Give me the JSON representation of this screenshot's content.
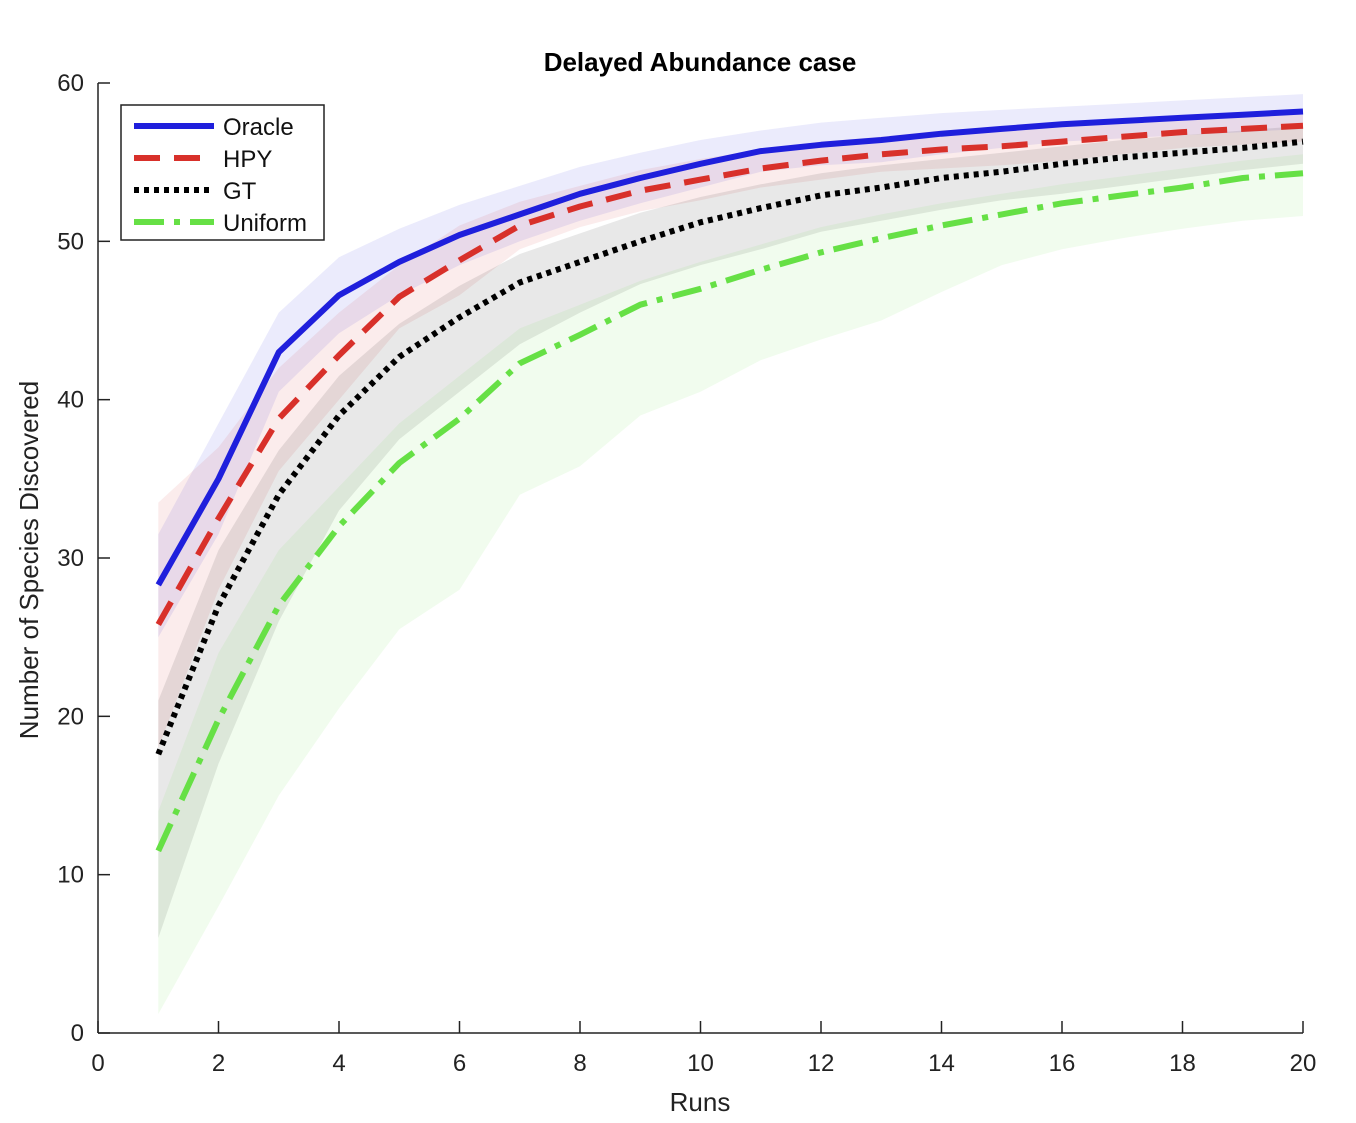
{
  "chart_data": {
    "type": "line",
    "title": "Delayed Abundance case",
    "xlabel": "Runs",
    "ylabel": "Number of Species Discovered",
    "xlim": [
      0,
      20
    ],
    "ylim": [
      0,
      60
    ],
    "xticks": [
      0,
      2,
      4,
      6,
      8,
      10,
      12,
      14,
      16,
      18,
      20
    ],
    "yticks": [
      0,
      10,
      20,
      30,
      40,
      50,
      60
    ],
    "grid": false,
    "legend_position": "top-left",
    "x": [
      1,
      2,
      3,
      4,
      5,
      6,
      7,
      8,
      9,
      10,
      11,
      12,
      13,
      14,
      15,
      16,
      17,
      18,
      19,
      20
    ],
    "series": [
      {
        "name": "Oracle",
        "color": "#1f1fdc",
        "dash": "solid",
        "values": [
          28.3,
          35.0,
          43.0,
          46.6,
          48.7,
          50.4,
          51.7,
          53.0,
          54.0,
          54.9,
          55.7,
          56.1,
          56.4,
          56.8,
          57.1,
          57.4,
          57.6,
          57.8,
          58.0,
          58.2
        ],
        "upper": [
          31.5,
          38.5,
          45.5,
          49.0,
          50.8,
          52.3,
          53.5,
          54.7,
          55.6,
          56.4,
          57.0,
          57.5,
          57.8,
          58.1,
          58.3,
          58.5,
          58.7,
          58.9,
          59.1,
          59.3
        ],
        "lower": [
          25.0,
          31.5,
          40.5,
          44.2,
          46.6,
          48.5,
          50.0,
          51.3,
          52.4,
          53.4,
          54.4,
          54.8,
          55.0,
          55.5,
          55.9,
          56.3,
          56.5,
          56.7,
          56.9,
          57.1
        ]
      },
      {
        "name": "HPY",
        "color": "#d8302a",
        "dash": "dashed",
        "values": [
          25.8,
          32.5,
          38.8,
          42.8,
          46.5,
          48.8,
          51.0,
          52.2,
          53.2,
          53.9,
          54.6,
          55.1,
          55.5,
          55.8,
          56.0,
          56.3,
          56.6,
          56.9,
          57.1,
          57.3
        ],
        "upper": [
          33.5,
          37.0,
          42.0,
          45.5,
          48.5,
          51.0,
          52.5,
          53.5,
          54.5,
          55.2,
          55.8,
          56.3,
          56.6,
          57.0,
          57.2,
          57.5,
          57.7,
          57.9,
          58.1,
          58.3
        ],
        "lower": [
          18.0,
          28.0,
          35.5,
          40.0,
          44.5,
          46.6,
          49.5,
          50.9,
          51.9,
          52.6,
          53.4,
          53.9,
          54.4,
          54.6,
          54.8,
          55.1,
          55.5,
          55.9,
          56.1,
          56.3
        ]
      },
      {
        "name": "GT",
        "color": "#000000",
        "dash": "dotted",
        "values": [
          17.6,
          27.0,
          34.0,
          39.0,
          42.7,
          45.2,
          47.4,
          48.7,
          50.0,
          51.2,
          52.1,
          52.9,
          53.4,
          54.0,
          54.4,
          54.9,
          55.3,
          55.6,
          55.9,
          56.3
        ],
        "upper": [
          21.0,
          30.5,
          36.8,
          41.5,
          44.8,
          47.2,
          49.2,
          50.5,
          51.8,
          52.8,
          53.6,
          54.3,
          54.8,
          55.2,
          55.6,
          56.0,
          56.4,
          56.7,
          57.0,
          57.3
        ],
        "lower": [
          6.0,
          17.0,
          26.0,
          33.0,
          37.5,
          40.5,
          43.5,
          45.5,
          47.3,
          48.5,
          49.5,
          50.6,
          51.3,
          52.0,
          52.6,
          53.0,
          53.5,
          54.0,
          54.5,
          54.9
        ]
      },
      {
        "name": "Uniform",
        "color": "#66e045",
        "dash": "dashdot",
        "values": [
          11.5,
          19.8,
          27.0,
          32.0,
          36.0,
          38.8,
          42.3,
          44.1,
          46.0,
          47.0,
          48.2,
          49.3,
          50.2,
          51.0,
          51.7,
          52.4,
          52.9,
          53.4,
          54.0,
          54.3
        ],
        "upper": [
          14.0,
          24.0,
          30.5,
          34.5,
          38.5,
          41.5,
          44.5,
          46.0,
          47.5,
          48.7,
          49.8,
          50.9,
          51.7,
          52.4,
          53.0,
          53.6,
          54.1,
          54.6,
          55.1,
          55.5
        ],
        "lower": [
          1.2,
          8.0,
          15.0,
          20.5,
          25.5,
          28.0,
          34.0,
          35.8,
          39.0,
          40.5,
          42.5,
          43.8,
          45.0,
          46.8,
          48.5,
          49.5,
          50.2,
          50.8,
          51.3,
          51.6
        ]
      }
    ]
  }
}
